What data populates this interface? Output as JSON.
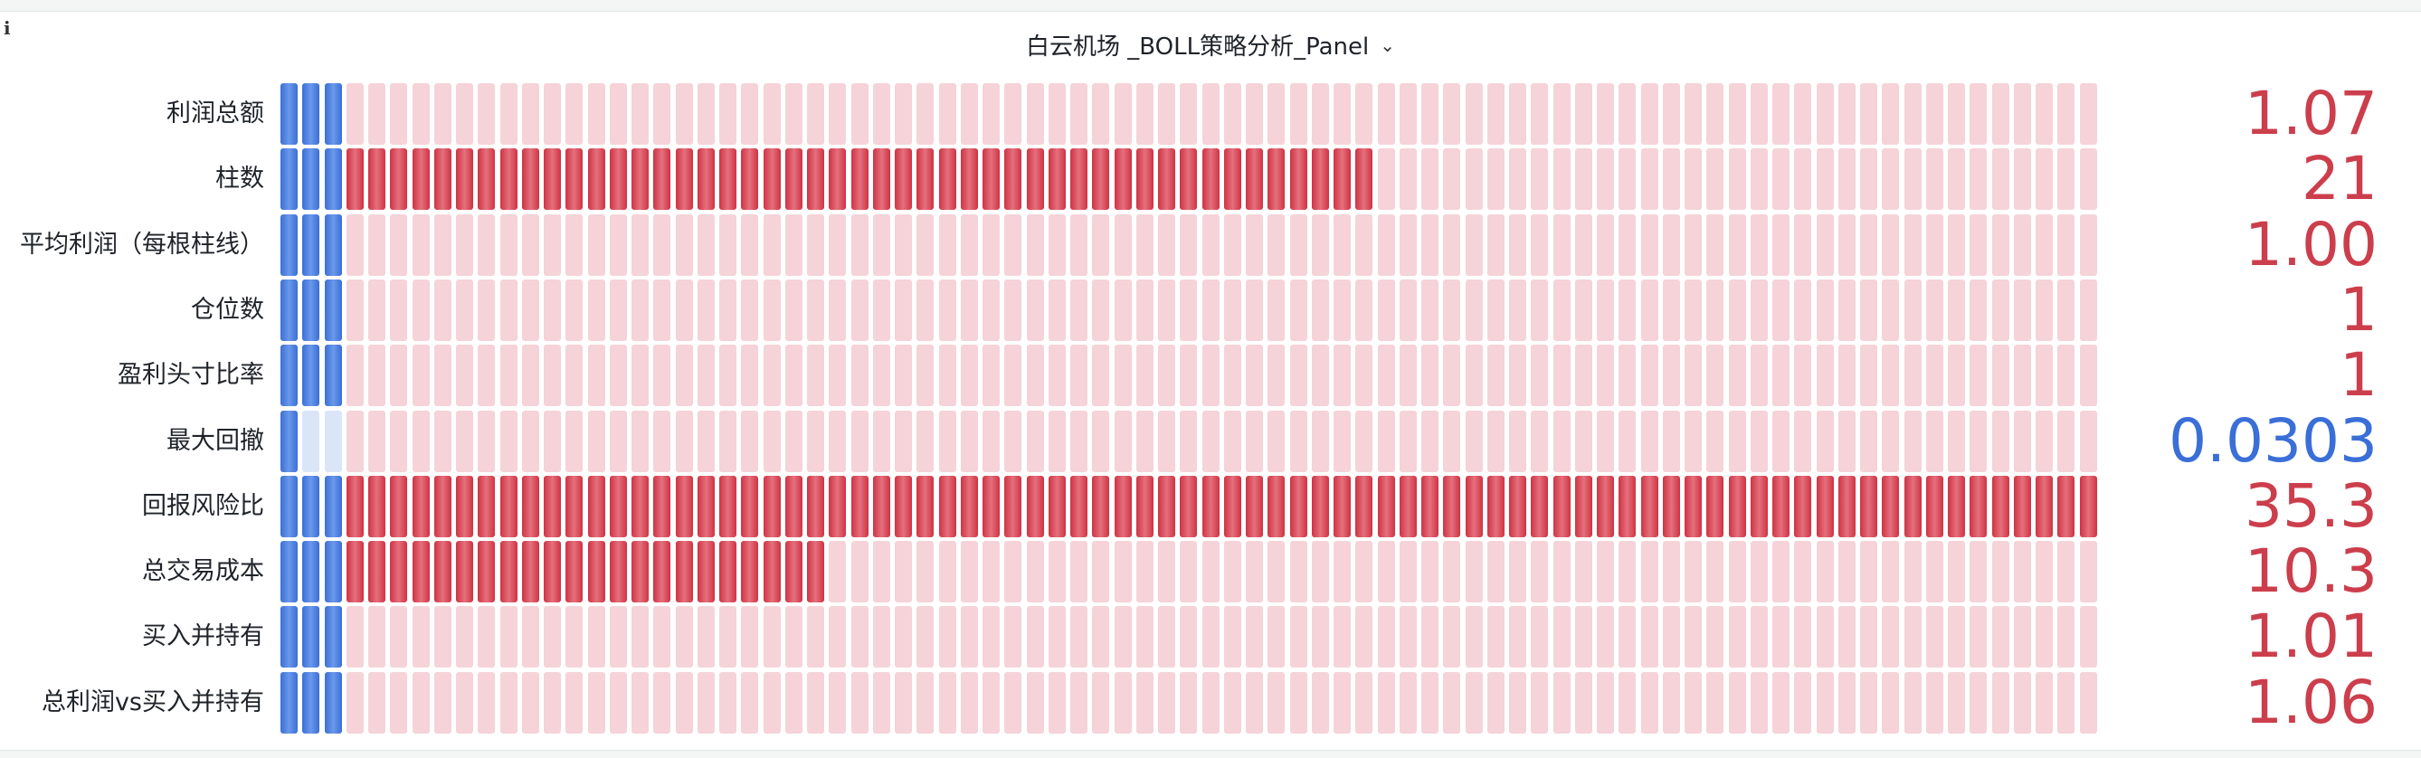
{
  "panel": {
    "info_icon": "i",
    "title": "白云机场 _BOLL策略分析_Panel",
    "title_chevron": "⌄"
  },
  "colors": {
    "red": "#cc3e4c",
    "blue": "#3a6fd8",
    "red_off": "#f5d3d8",
    "blue_off": "#dbe5f8"
  },
  "gauge": {
    "blue_segments": 3,
    "red_segments": 80
  },
  "rows": [
    {
      "label": "利润总额",
      "value": "1.07",
      "color": "red",
      "blue_filled": 3,
      "red_filled": 0
    },
    {
      "label": "柱数",
      "value": "21",
      "color": "red",
      "blue_filled": 3,
      "red_filled": 47
    },
    {
      "label": "平均利润（每根柱线）",
      "value": "1.00",
      "color": "red",
      "blue_filled": 3,
      "red_filled": 0
    },
    {
      "label": "仓位数",
      "value": "1",
      "color": "red",
      "blue_filled": 3,
      "red_filled": 0
    },
    {
      "label": "盈利头寸比率",
      "value": "1",
      "color": "red",
      "blue_filled": 3,
      "red_filled": 0
    },
    {
      "label": "最大回撤",
      "value": "0.0303",
      "color": "blue",
      "blue_filled": 1,
      "red_filled": 0
    },
    {
      "label": "回报风险比",
      "value": "35.3",
      "color": "red",
      "blue_filled": 3,
      "red_filled": 80
    },
    {
      "label": "总交易成本",
      "value": "10.3",
      "color": "red",
      "blue_filled": 3,
      "red_filled": 22
    },
    {
      "label": "买入并持有",
      "value": "1.01",
      "color": "red",
      "blue_filled": 3,
      "red_filled": 0
    },
    {
      "label": "总利润vs买入并持有",
      "value": "1.06",
      "color": "red",
      "blue_filled": 3,
      "red_filled": 0
    }
  ]
}
